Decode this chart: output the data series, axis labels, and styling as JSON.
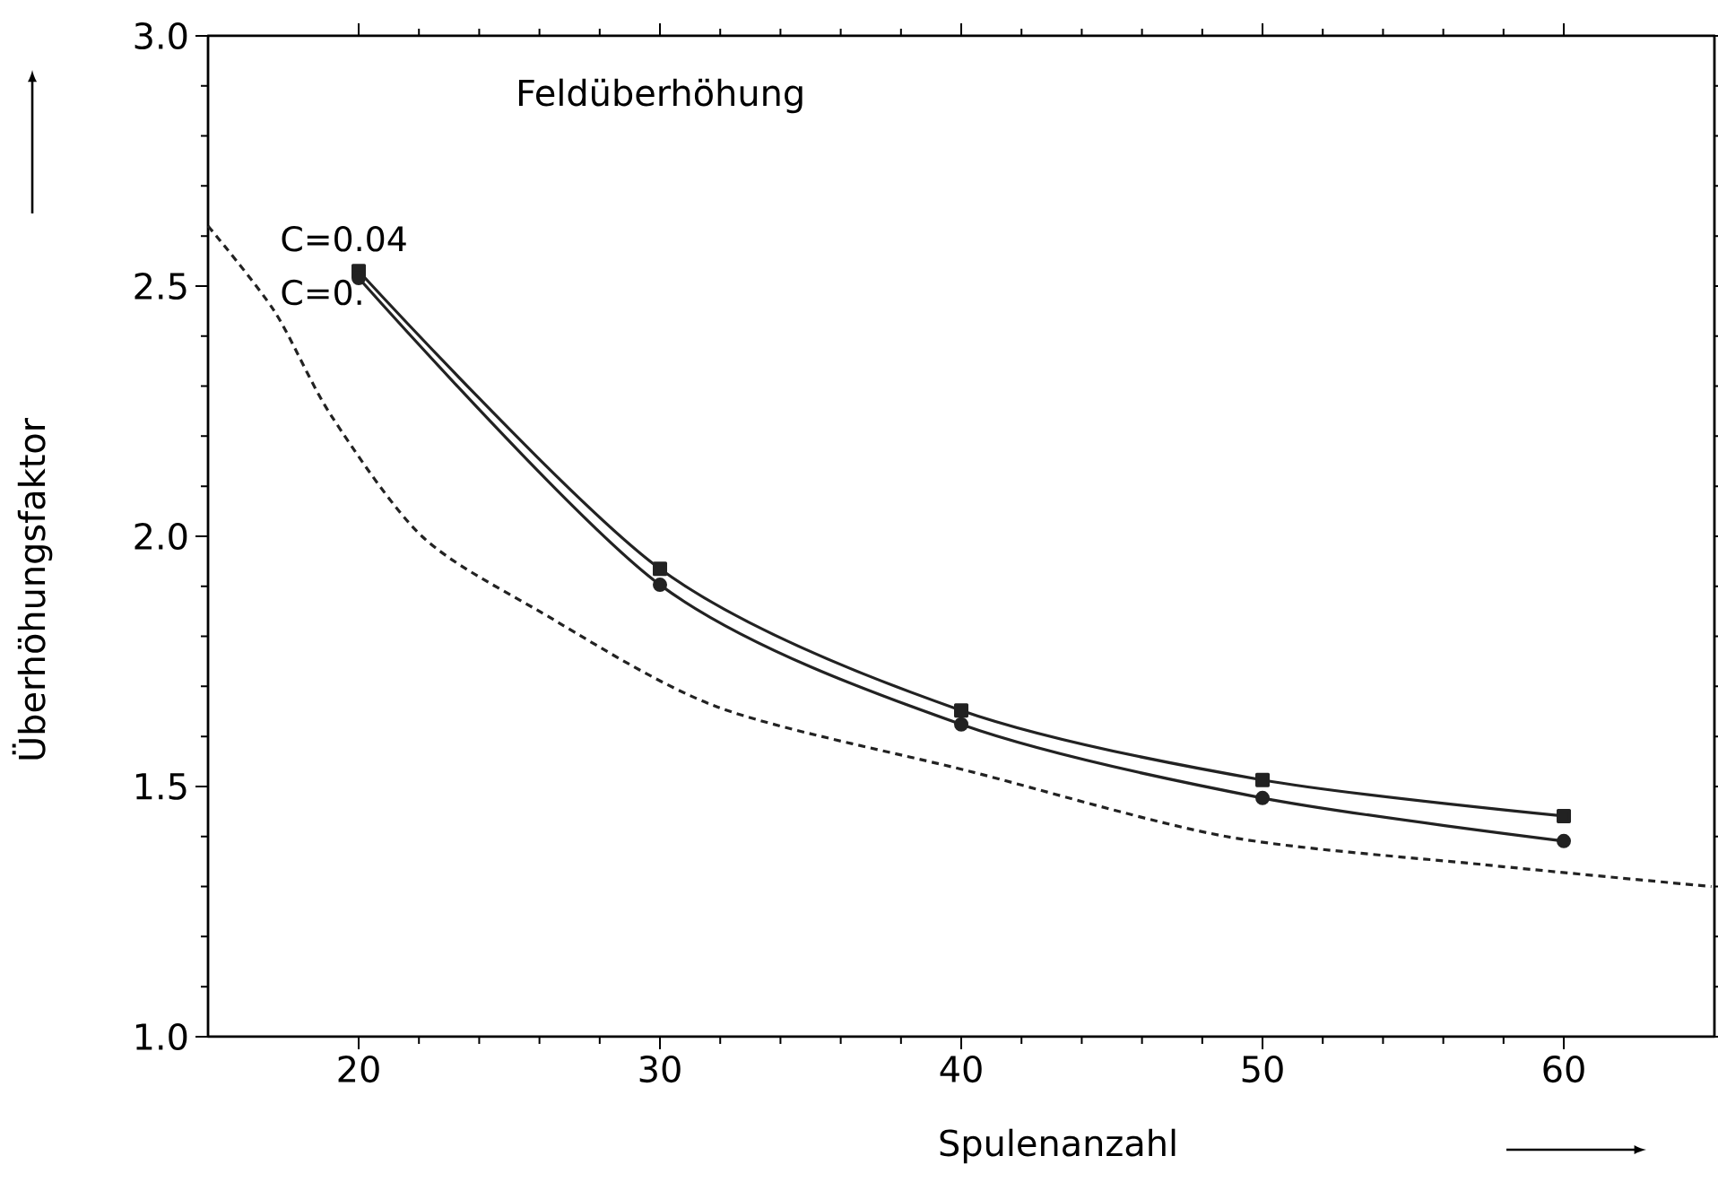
{
  "chart_data": {
    "type": "line",
    "title": "Feldüberhöhung",
    "xlabel": "Spulenanzahl",
    "ylabel": "Überhöhungsfaktor",
    "x": [
      20,
      30,
      40,
      50,
      60
    ],
    "series": [
      {
        "name": "C=0.04",
        "color": "#222222",
        "values": [
          2.53,
          1.935,
          1.652,
          1.513,
          1.441
        ],
        "marker": "square",
        "line_style": "solid"
      },
      {
        "name": "C=0.",
        "color": "#222222",
        "values": [
          2.516,
          1.903,
          1.624,
          1.477,
          1.391
        ],
        "marker": "circle",
        "line_style": "solid"
      },
      {
        "color": "#222222",
        "x": [
          15,
          17.2,
          19.1,
          22.1,
          26.0,
          31.9,
          40.3,
          48.8,
          57.3,
          64.9
        ],
        "values": [
          2.62,
          2.45,
          2.24,
          2.0,
          1.85,
          1.659,
          1.53,
          1.4,
          1.344,
          1.3
        ],
        "marker": "none",
        "line_style": "dotted"
      }
    ],
    "xlim": [
      15,
      65
    ],
    "ylim": [
      1.0,
      3.0
    ],
    "xticks": [
      20,
      30,
      40,
      50,
      60
    ],
    "yticks": [
      {
        "value": 1.0,
        "label": "1.0"
      },
      {
        "value": 1.5,
        "label": "1.5"
      },
      {
        "value": 2.0,
        "label": "2.0"
      },
      {
        "value": 2.5,
        "label": "2.5"
      },
      {
        "value": 3.0,
        "label": "3.0"
      }
    ],
    "grid": false
  }
}
